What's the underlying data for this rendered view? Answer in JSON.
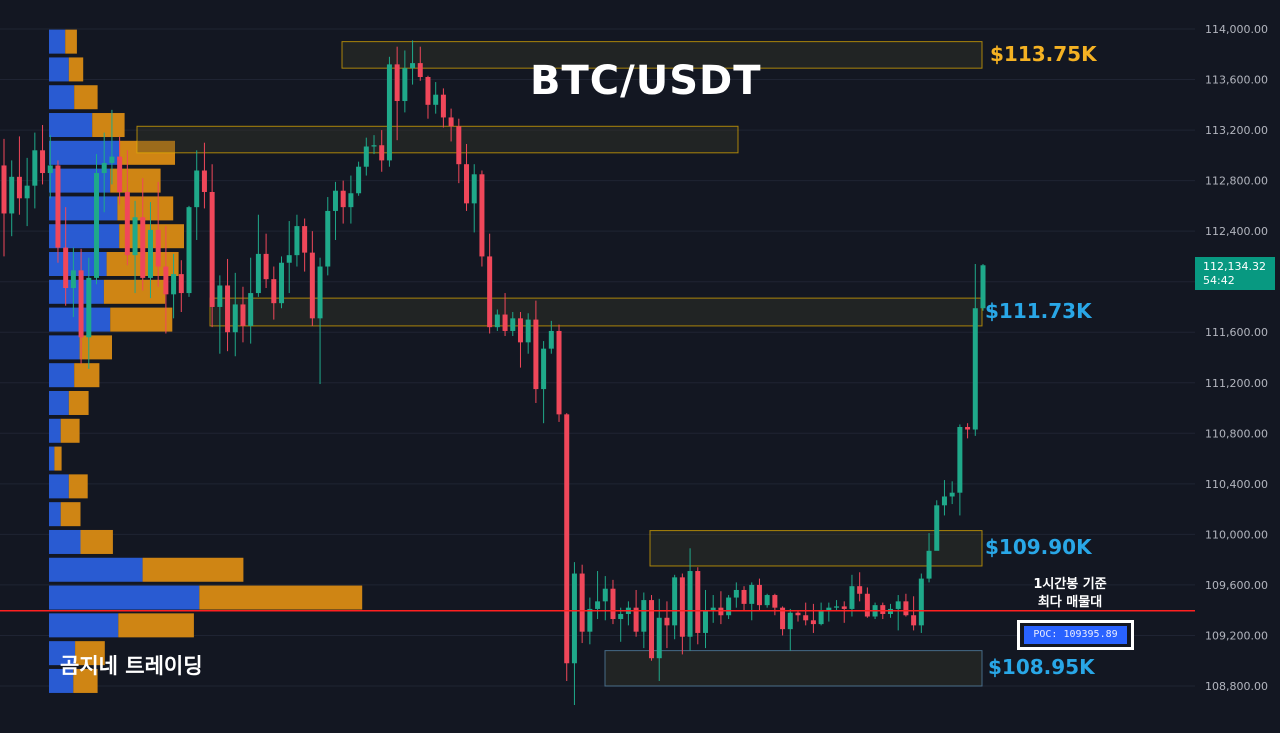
{
  "chart_data": {
    "type": "candlestick",
    "title": "BTC/USDT",
    "ylim": [
      108600,
      114200
    ],
    "y_ticks": [
      "114,000.00",
      "113,600.00",
      "113,200.00",
      "112,800.00",
      "112,400.00",
      "112,000.00",
      "111,600.00",
      "111,200.00",
      "110,800.00",
      "110,400.00",
      "110,000.00",
      "109,600.00",
      "109,200.00",
      "108,800.00"
    ],
    "y_tick_values": [
      114000,
      113600,
      113200,
      112800,
      112400,
      112000,
      111600,
      111200,
      110800,
      110400,
      110000,
      109600,
      109200,
      108800
    ],
    "last_price": "112,134.32",
    "countdown": "54:42",
    "candles": [
      [
        112920,
        113130,
        112200,
        112540
      ],
      [
        112540,
        112960,
        112360,
        112830
      ],
      [
        112830,
        113150,
        112530,
        112660
      ],
      [
        112660,
        112980,
        112440,
        112760
      ],
      [
        112760,
        113180,
        112580,
        113040
      ],
      [
        113040,
        113240,
        112770,
        112860
      ],
      [
        112860,
        113160,
        112660,
        112920
      ],
      [
        112920,
        112960,
        112150,
        112270
      ],
      [
        112270,
        112590,
        111810,
        111950
      ],
      [
        111950,
        112270,
        111720,
        112090
      ],
      [
        112090,
        112260,
        111350,
        111560
      ],
      [
        111560,
        112190,
        111310,
        112030
      ],
      [
        112030,
        113010,
        111980,
        112860
      ],
      [
        112860,
        113180,
        112550,
        112940
      ],
      [
        112940,
        113360,
        112770,
        112990
      ],
      [
        112990,
        113150,
        112610,
        112710
      ],
      [
        112710,
        113040,
        112130,
        112210
      ],
      [
        112210,
        112640,
        111910,
        112510
      ],
      [
        112510,
        112820,
        111930,
        112030
      ],
      [
        112030,
        112630,
        111870,
        112410
      ],
      [
        112410,
        112790,
        111960,
        112120
      ],
      [
        112120,
        112440,
        111590,
        111900
      ],
      [
        111900,
        112220,
        111710,
        112060
      ],
      [
        112060,
        112170,
        111760,
        111910
      ],
      [
        111910,
        112600,
        111880,
        112590
      ],
      [
        112590,
        113040,
        112330,
        112880
      ],
      [
        112880,
        113100,
        112580,
        112710
      ],
      [
        112710,
        112930,
        111640,
        111800
      ],
      [
        111800,
        112050,
        111430,
        111970
      ],
      [
        111970,
        112180,
        111450,
        111600
      ],
      [
        111600,
        112070,
        111410,
        111820
      ],
      [
        111820,
        111960,
        111520,
        111650
      ],
      [
        111650,
        112190,
        111510,
        111910
      ],
      [
        111910,
        112530,
        111880,
        112220
      ],
      [
        112220,
        112380,
        111950,
        112020
      ],
      [
        112020,
        112120,
        111700,
        111830
      ],
      [
        111830,
        112200,
        111790,
        112150
      ],
      [
        112150,
        112480,
        111910,
        112210
      ],
      [
        112210,
        112530,
        112120,
        112440
      ],
      [
        112440,
        112500,
        112080,
        112230
      ],
      [
        112230,
        112400,
        111650,
        111710
      ],
      [
        111710,
        112190,
        111190,
        112120
      ],
      [
        112120,
        112670,
        112050,
        112560
      ],
      [
        112560,
        112790,
        112330,
        112720
      ],
      [
        112720,
        112800,
        112460,
        112590
      ],
      [
        112590,
        112840,
        112460,
        112700
      ],
      [
        112700,
        112950,
        112680,
        112910
      ],
      [
        112910,
        113140,
        112840,
        113070
      ],
      [
        113070,
        113160,
        113010,
        113080
      ],
      [
        113080,
        113200,
        112870,
        112960
      ],
      [
        112960,
        113780,
        112910,
        113720
      ],
      [
        113720,
        113860,
        113120,
        113430
      ],
      [
        113430,
        113830,
        113340,
        113690
      ],
      [
        113690,
        113910,
        113560,
        113730
      ],
      [
        113730,
        113860,
        113590,
        113620
      ],
      [
        113620,
        113630,
        113290,
        113400
      ],
      [
        113400,
        113580,
        113330,
        113480
      ],
      [
        113480,
        113530,
        113220,
        113300
      ],
      [
        113300,
        113370,
        113110,
        113230
      ],
      [
        113230,
        113290,
        112780,
        112930
      ],
      [
        112930,
        113090,
        112560,
        112620
      ],
      [
        112620,
        112930,
        112390,
        112850
      ],
      [
        112850,
        112880,
        112120,
        112200
      ],
      [
        112200,
        112380,
        111590,
        111640
      ],
      [
        111640,
        111780,
        111610,
        111740
      ],
      [
        111740,
        111910,
        111570,
        111610
      ],
      [
        111610,
        111760,
        111570,
        111710
      ],
      [
        111710,
        111760,
        111320,
        111520
      ],
      [
        111520,
        111750,
        111430,
        111700
      ],
      [
        111700,
        111850,
        111040,
        111150
      ],
      [
        111150,
        111530,
        110880,
        111470
      ],
      [
        111470,
        111690,
        111430,
        111610
      ],
      [
        111610,
        111660,
        110890,
        110950
      ],
      [
        110950,
        110960,
        108840,
        108980
      ],
      [
        108980,
        109780,
        108650,
        109690
      ],
      [
        109690,
        109760,
        109140,
        109230
      ],
      [
        109230,
        109500,
        109130,
        109410
      ],
      [
        109410,
        109710,
        109330,
        109470
      ],
      [
        109470,
        109670,
        109320,
        109570
      ],
      [
        109570,
        109640,
        109290,
        109330
      ],
      [
        109330,
        109420,
        109150,
        109370
      ],
      [
        109370,
        109470,
        109280,
        109420
      ],
      [
        109420,
        109560,
        109190,
        109230
      ],
      [
        109230,
        109540,
        109100,
        109480
      ],
      [
        109480,
        109520,
        109000,
        109020
      ],
      [
        109020,
        109490,
        108840,
        109340
      ],
      [
        109340,
        109470,
        109100,
        109280
      ],
      [
        109280,
        109680,
        109170,
        109660
      ],
      [
        109660,
        109690,
        109050,
        109190
      ],
      [
        109190,
        109890,
        109080,
        109710
      ],
      [
        109710,
        109740,
        109130,
        109220
      ],
      [
        109220,
        109560,
        109100,
        109390
      ],
      [
        109390,
        109520,
        109300,
        109420
      ],
      [
        109420,
        109550,
        109290,
        109360
      ],
      [
        109360,
        109520,
        109330,
        109500
      ],
      [
        109500,
        109620,
        109420,
        109560
      ],
      [
        109560,
        109590,
        109390,
        109450
      ],
      [
        109450,
        109620,
        109320,
        109600
      ],
      [
        109600,
        109650,
        109400,
        109440
      ],
      [
        109440,
        109530,
        109420,
        109520
      ],
      [
        109520,
        109530,
        109360,
        109420
      ],
      [
        109420,
        109430,
        109200,
        109250
      ],
      [
        109250,
        109410,
        109080,
        109380
      ],
      [
        109380,
        109400,
        109310,
        109360
      ],
      [
        109360,
        109460,
        109280,
        109320
      ],
      [
        109320,
        109450,
        109220,
        109290
      ],
      [
        109290,
        109460,
        109280,
        109400
      ],
      [
        109400,
        109460,
        109310,
        109420
      ],
      [
        109420,
        109480,
        109400,
        109430
      ],
      [
        109430,
        109470,
        109300,
        109410
      ],
      [
        109410,
        109680,
        109350,
        109590
      ],
      [
        109590,
        109700,
        109470,
        109530
      ],
      [
        109530,
        109580,
        109340,
        109350
      ],
      [
        109350,
        109460,
        109330,
        109440
      ],
      [
        109440,
        109460,
        109330,
        109370
      ],
      [
        109370,
        109450,
        109340,
        109410
      ],
      [
        109410,
        109520,
        109240,
        109470
      ],
      [
        109470,
        109530,
        109350,
        109360
      ],
      [
        109360,
        109510,
        109240,
        109280
      ],
      [
        109280,
        109690,
        109220,
        109650
      ],
      [
        109650,
        110010,
        109620,
        109870
      ],
      [
        109870,
        110270,
        109880,
        110230
      ],
      [
        110230,
        110430,
        110150,
        110300
      ],
      [
        110300,
        110420,
        110240,
        110330
      ],
      [
        110330,
        110870,
        110150,
        110850
      ],
      [
        110850,
        110880,
        110760,
        110830
      ],
      [
        110830,
        112140,
        110780,
        111790
      ],
      [
        111790,
        112140,
        111770,
        112130
      ]
    ],
    "volume_profile": [
      {
        "price": 113900,
        "buy": 180,
        "sell": 130
      },
      {
        "price": 113680,
        "buy": 220,
        "sell": 160
      },
      {
        "price": 113460,
        "buy": 280,
        "sell": 260
      },
      {
        "price": 113240,
        "buy": 480,
        "sell": 360
      },
      {
        "price": 113020,
        "buy": 780,
        "sell": 620
      },
      {
        "price": 112800,
        "buy": 680,
        "sell": 560
      },
      {
        "price": 112580,
        "buy": 760,
        "sell": 620
      },
      {
        "price": 112360,
        "buy": 780,
        "sell": 720
      },
      {
        "price": 112140,
        "buy": 640,
        "sell": 800
      },
      {
        "price": 111920,
        "buy": 610,
        "sell": 680
      },
      {
        "price": 111700,
        "buy": 680,
        "sell": 690
      },
      {
        "price": 111480,
        "buy": 340,
        "sell": 360
      },
      {
        "price": 111260,
        "buy": 280,
        "sell": 280
      },
      {
        "price": 111040,
        "buy": 220,
        "sell": 220
      },
      {
        "price": 110820,
        "buy": 130,
        "sell": 210
      },
      {
        "price": 110600,
        "buy": 60,
        "sell": 80
      },
      {
        "price": 110380,
        "buy": 220,
        "sell": 210
      },
      {
        "price": 110160,
        "buy": 130,
        "sell": 220
      },
      {
        "price": 109940,
        "buy": 350,
        "sell": 360
      },
      {
        "price": 109720,
        "buy": 1040,
        "sell": 1120
      },
      {
        "price": 109500,
        "buy": 1670,
        "sell": 1810
      },
      {
        "price": 109280,
        "buy": 770,
        "sell": 840
      },
      {
        "price": 109060,
        "buy": 290,
        "sell": 330
      },
      {
        "price": 108840,
        "buy": 270,
        "sell": 270
      }
    ],
    "zones": [
      {
        "label": "$113.75K",
        "top": 113900,
        "bottom": 113690,
        "color": "#e8b100",
        "label_color": "#f5b223"
      },
      {
        "label": "",
        "top": 113230,
        "bottom": 113020,
        "color": "#e8b100",
        "label_color": ""
      },
      {
        "label": "$111.73K",
        "top": 111870,
        "bottom": 111650,
        "color": "#e8b100",
        "label_color": "#29a7e7"
      },
      {
        "label": "$109.90K",
        "top": 110030,
        "bottom": 109750,
        "color": "#e8b100",
        "label_color": "#29a7e7"
      },
      {
        "label": "$108.95K",
        "top": 109080,
        "bottom": 108800,
        "color": "#5a8bb0",
        "label_color": "#29a7e7"
      }
    ],
    "poc_price": 109395.89,
    "poc_label": "POC: 109395.89",
    "annotation_lines": [
      "1시간봉 기준",
      "최다 매물대"
    ],
    "watermark": "곰지네 트레이딩",
    "colors": {
      "background": "#131722",
      "up": "#1fa98a",
      "down": "#f0475a",
      "grid": "#1f2433",
      "axis_text": "#b2b5be",
      "poc_line": "#ff2020",
      "vp_buy": "#2a5fdc",
      "vp_sell": "#d98b14"
    }
  }
}
